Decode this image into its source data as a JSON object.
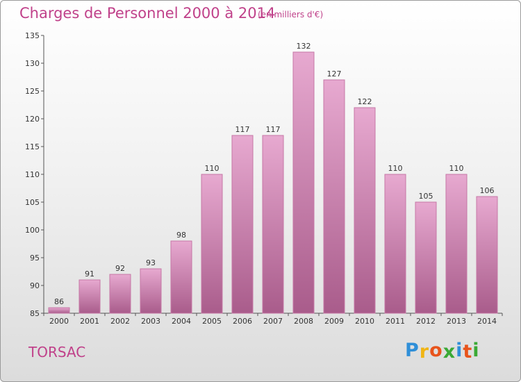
{
  "header": {
    "title": "Charges de Personnel 2000 à 2014",
    "unit": "(en milliers d'€)"
  },
  "footer": {
    "commune": "TORSAC",
    "logo": [
      "P",
      "r",
      "o",
      "x",
      "i",
      "t",
      "i"
    ]
  },
  "colors": {
    "title": "#c0418a",
    "bar_top": "#e7a9d0",
    "bar_bottom": "#a95c8b",
    "bar_stroke": "#c678a6",
    "logo": [
      "#2f8fd8",
      "#f0b515",
      "#e8541c",
      "#3aa935",
      "#2f8fd8",
      "#e8541c",
      "#3aa935"
    ]
  },
  "chart_data": {
    "type": "bar",
    "categories": [
      "2000",
      "2001",
      "2002",
      "2003",
      "2004",
      "2005",
      "2006",
      "2007",
      "2008",
      "2009",
      "2010",
      "2011",
      "2012",
      "2013",
      "2014"
    ],
    "values": [
      86,
      91,
      92,
      93,
      98,
      110,
      117,
      117,
      132,
      127,
      122,
      110,
      105,
      110,
      106
    ],
    "y_ticks": [
      85,
      90,
      95,
      100,
      105,
      110,
      115,
      120,
      125,
      130,
      135
    ],
    "ylim": [
      85,
      135
    ],
    "grid": false,
    "title": "Charges de Personnel 2000 à 2014",
    "ylabel": "(en milliers d'€)"
  }
}
